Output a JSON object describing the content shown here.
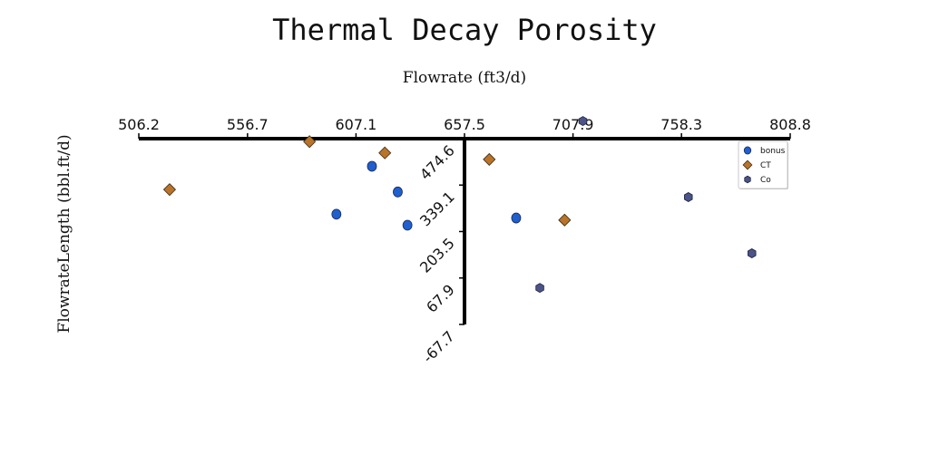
{
  "chart_data": {
    "type": "scatter",
    "title": "Thermal Decay Porosity",
    "xlabel": "Flowrate (ft3/d)",
    "ylabel": "FlowrateLength (bbl.ft/d)",
    "xlim": [
      506.2,
      808.8
    ],
    "ylim": [
      -67.7,
      474.6
    ],
    "x_ticks": [
      "506.2",
      "556.7",
      "607.1",
      "657.5",
      "707.9",
      "758.3",
      "808.8"
    ],
    "y_ticks": [
      "474.6",
      "339.1",
      "203.5",
      "67.9",
      "-67.7"
    ],
    "x_axis_position": "top",
    "y_axis_at_x": 657.5,
    "grid": false,
    "legend_position": "top-right",
    "series": [
      {
        "name": "bonus",
        "color": "#1f5fcf",
        "marker": "circle",
        "points": [
          [
            614.5,
            394
          ],
          [
            626.5,
            319
          ],
          [
            598,
            254
          ],
          [
            631,
            222
          ],
          [
            681.5,
            243
          ]
        ]
      },
      {
        "name": "CT",
        "color": "#b8742a",
        "marker": "diamond",
        "points": [
          [
            520.5,
            326
          ],
          [
            585.5,
            466
          ],
          [
            620.5,
            433
          ],
          [
            669,
            414
          ],
          [
            704,
            237
          ]
        ]
      },
      {
        "name": "Co",
        "color": "#4b5488",
        "marker": "hexagon",
        "points": [
          [
            712.5,
            526
          ],
          [
            761.5,
            304
          ],
          [
            795,
            356
          ],
          [
            791,
            140
          ],
          [
            692.5,
            39
          ]
        ]
      }
    ]
  }
}
